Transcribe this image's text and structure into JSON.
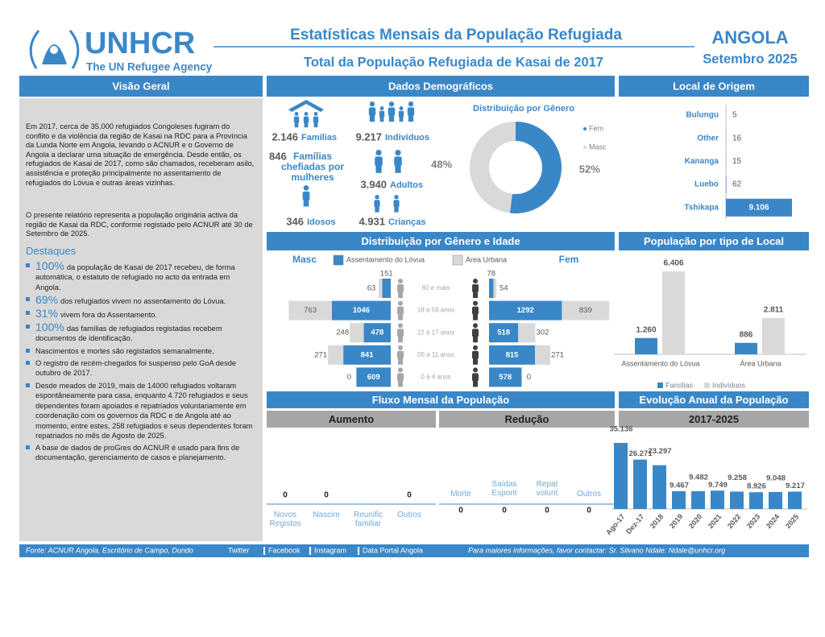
{
  "header": {
    "org": "UNHCR",
    "tagline": "The UN Refugee Agency",
    "title": "Estatísticas Mensais da População Refugiada",
    "subtitle": "Total da População Refugiada de Kasai de 2017",
    "country": "ANGOLA",
    "date": "Setembro 2025"
  },
  "overview": {
    "heading": "Visão Geral",
    "paragraphs": [
      "Em 2017, cerca de 35.000 refugiados Congoleses fugiram do conflito e da violência da região de Kasai na RDC para a Província da Lunda Norte em Angola, levando o ACNUR e o Governo de Angola a declarar uma situação de emergência. Desde então, os refugiados de Kasai de 2017, como são chamados, receberam asilo, assistência e proteção principalmente no assentamento de refugiados do Lóvua e outras áreas vizinhas.",
      "O presente relatório representa a população originária activa da região de Kasai da RDC, conforme registado pelo ACNUR até 30 de Setembro de 2025."
    ],
    "highlights_heading": "Destaques",
    "highlights": [
      {
        "emph": "100%",
        "text": "da população de Kasai de 2017 recebeu, de forma automática, o estatuto de refugiado no acto da entrada em Angola."
      },
      {
        "emph": "69%",
        "text": "dos refugiados vivem no assentamento do Lóvua."
      },
      {
        "emph": "31%",
        "text": "vivem fora do Assentamento."
      },
      {
        "emph": "100%",
        "text": "das famílias de refugiados registadas recebem documentos de identificação."
      },
      {
        "text": "Nascimentos e mortes são registados semanalmente."
      },
      {
        "text": "O registro de recém-chegados foi suspenso pelo GoA desde outubro de 2017."
      },
      {
        "text": "Desde meados de 2019, mais de 14000 refugiados voltaram espontâneamente para casa, enquanto 4.720 refugiados e seus dependentes foram apoiados e repatriados voluntariamente em coordenação com os governos da RDC e de Angola até ao momento, entre estes, 258 refugiados e seus dependentes foram repatriados no mês de Agosto de 2025."
      },
      {
        "text": "A base de dados de proGres do ACNUR é usado para fins de documentação, gerenciamento de casos e planejamento."
      }
    ]
  },
  "demographics": {
    "heading": "Dados Demográficos",
    "families": {
      "value": "2.146",
      "label": "Famílias"
    },
    "individuals": {
      "value": "9.217",
      "label": "Indivíduos"
    },
    "female_headed": {
      "value": "846",
      "label": "Famílias chefiadas por mulheres"
    },
    "adults": {
      "value": "3.940",
      "label": "Adultos"
    },
    "elderly": {
      "value": "346",
      "label": "Idosos"
    },
    "children": {
      "value": "4.931",
      "label": "Crianças"
    }
  },
  "gender": {
    "type": "donut",
    "title": "Distribuição por Gênero",
    "categories": [
      "Fem",
      "Masc"
    ],
    "values": [
      52,
      48
    ],
    "value_labels": [
      "52%",
      "48%"
    ],
    "colors": [
      "#3a87c8",
      "#d9d9d9"
    ]
  },
  "origin": {
    "type": "bar",
    "heading": "Local de Origem",
    "categories": [
      "Bulungu",
      "Other",
      "Kananga",
      "Luebo",
      "Tshikapa"
    ],
    "values": [
      5,
      16,
      15,
      62,
      9106
    ],
    "value_labels": [
      "5",
      "16",
      "15",
      "62",
      "9.106"
    ],
    "color": "#3a87c8"
  },
  "pyramid": {
    "heading": "Distribuição por Gênero e Idade",
    "left_label": "Masc",
    "right_label": "Fem",
    "categories": [
      "60 e mais",
      "18 a 59 anos",
      "12 à 17 anos",
      "05 a 11 anos",
      "0 à 4 anos"
    ],
    "series": [
      {
        "name": "Assentamento do Lóvua",
        "color": "#3a87c8",
        "masc": [
          151,
          1046,
          478,
          841,
          609
        ],
        "fem": [
          78,
          1292,
          518,
          815,
          578
        ]
      },
      {
        "name": "Área Urbana",
        "color": "#d9d9d9",
        "masc": [
          63,
          763,
          248,
          271,
          0
        ],
        "fem": [
          54,
          839,
          302,
          271,
          0
        ]
      }
    ]
  },
  "location": {
    "type": "bar",
    "heading": "População por tipo de Local",
    "categories": [
      "Assentamento do Lóvua",
      "Área Urbana"
    ],
    "series": [
      {
        "name": "Famílias",
        "color": "#3a87c8",
        "values": [
          1260,
          886
        ],
        "value_labels": [
          "1.260",
          "886"
        ]
      },
      {
        "name": "Indivíduos",
        "color": "#d9d9d9",
        "values": [
          6406,
          2811
        ],
        "value_labels": [
          "6.406",
          "2.811"
        ]
      }
    ]
  },
  "flow": {
    "heading": "Fluxo Mensal da População",
    "increase": {
      "heading": "Aumento",
      "categories": [
        "Novos Registos",
        "Nascim",
        "Reunific familiar",
        "Outros"
      ],
      "values": [
        0,
        0,
        null,
        0
      ]
    },
    "decrease": {
      "heading": "Redução",
      "categories": [
        "Morte",
        "Saídas Espont",
        "Repat volunt",
        "Outros"
      ],
      "values": [
        0,
        0,
        0,
        0
      ]
    }
  },
  "annual": {
    "type": "bar",
    "heading": "Evolução Anual da População",
    "period": "2017-2025",
    "categories": [
      "Ago-17",
      "Dez-17",
      "2018",
      "2019",
      "2020",
      "2021",
      "2022",
      "2023",
      "2024",
      "2025"
    ],
    "values": [
      35136,
      26271,
      23297,
      9467,
      9482,
      9749,
      9258,
      8926,
      9048,
      9217
    ],
    "value_labels": [
      "35.136",
      "26.271",
      "23.297",
      "9.467",
      "9.482",
      "9.749",
      "9.258",
      "8.926",
      "9.048",
      "9.217"
    ],
    "color": "#3a87c8"
  },
  "footer": {
    "source": "Fonte: ACNUR Angola, Escritório de Campo, Dundo",
    "links": [
      "Twitter",
      "Facebook",
      "Instagram",
      "Data Portal Angola"
    ],
    "contact": "Para maiores informações, favor contactar: Sr. Silvano Ndale: Ndale@unhcr.org"
  }
}
